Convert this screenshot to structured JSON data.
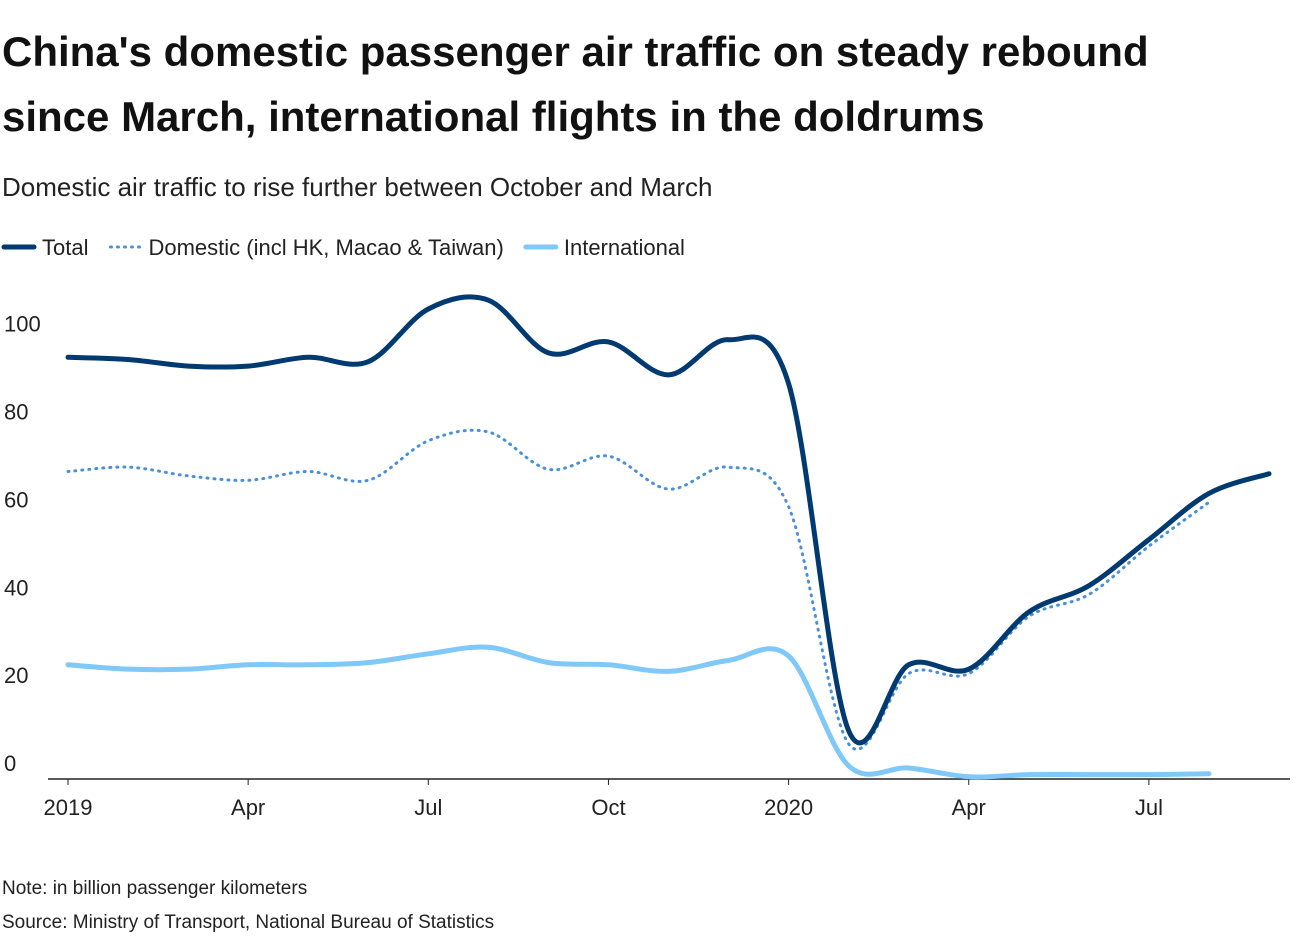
{
  "chart_data": {
    "type": "line",
    "title": [
      "China's domestic passenger air traffic on steady rebound",
      "since March, international flights in the doldrums"
    ],
    "subtitle": "Domestic air traffic to rise further between October and March",
    "note": "Note: in billion passenger kilometers",
    "source": "Source: Ministry of Transport, National Bureau of Statistics",
    "categories": [
      "2019",
      null,
      null,
      "Apr",
      null,
      null,
      "Jul",
      null,
      null,
      "Oct",
      null,
      null,
      "2020",
      null,
      null,
      "Apr",
      null,
      null,
      "Jul",
      null,
      null
    ],
    "series": [
      {
        "name": "Total",
        "color": "#003a70",
        "dash": "solid",
        "values": [
          96,
          95.5,
          94,
          94,
          96,
          95,
          107,
          109,
          97,
          99.5,
          92,
          100,
          90,
          11,
          26,
          25,
          38,
          44,
          54.5,
          65,
          69.5
        ]
      },
      {
        "name": "Domestic (incl HK, Macao & Taiwan)",
        "color": "#4a90d9",
        "dash": "dotted",
        "values": [
          70,
          71,
          69,
          68,
          70,
          68,
          77,
          79,
          70.5,
          73.5,
          66,
          71,
          62,
          8,
          24,
          24,
          37,
          42,
          53,
          63,
          null
        ]
      },
      {
        "name": "International",
        "color": "#7fc8f8",
        "dash": "solid",
        "values": [
          26,
          25,
          25,
          26,
          26,
          26.5,
          28.5,
          30,
          26.5,
          26,
          24.5,
          27,
          28,
          3,
          2.5,
          0.5,
          1,
          1,
          1,
          1.2,
          null
        ]
      }
    ],
    "ylim": [
      0,
      112
    ],
    "yticks": [
      0,
      20,
      40,
      60,
      80,
      100
    ],
    "grid": false
  }
}
